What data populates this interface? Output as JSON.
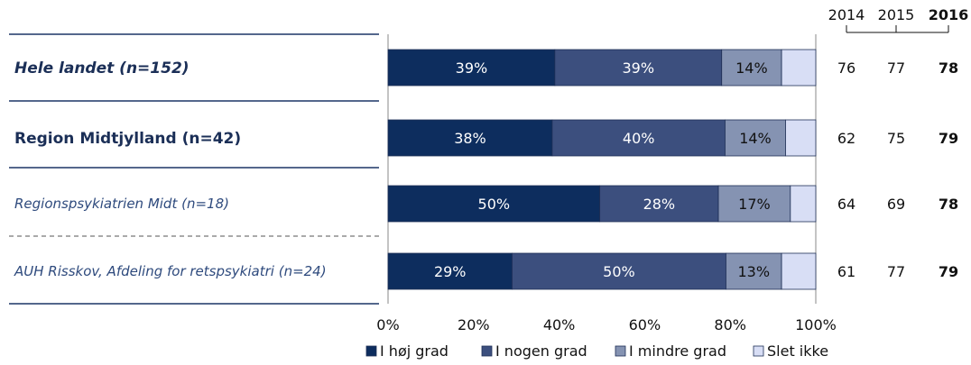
{
  "chart_data": {
    "type": "bar",
    "orientation": "horizontal",
    "stacked": true,
    "percent": true,
    "rows": [
      {
        "label": "Hele landet (n=152)",
        "level": 1,
        "values": [
          39,
          39,
          14,
          8
        ],
        "labels": [
          "39%",
          "39%",
          "14%",
          ""
        ],
        "scores": [
          "76",
          "77",
          "78"
        ]
      },
      {
        "label": "Region Midtjylland (n=42)",
        "level": 2,
        "values": [
          38,
          40,
          14,
          7
        ],
        "labels": [
          "38%",
          "40%",
          "14%",
          ""
        ],
        "scores": [
          "62",
          "75",
          "79"
        ]
      },
      {
        "label": "Regionspsykiatrien Midt (n=18)",
        "level": 3,
        "values": [
          50,
          28,
          17,
          6
        ],
        "labels": [
          "50%",
          "28%",
          "17%",
          ""
        ],
        "scores": [
          "64",
          "69",
          "78"
        ]
      },
      {
        "label": "AUH Risskov, Afdeling for retspsykiatri (n=24)",
        "level": 3,
        "values": [
          29,
          50,
          13,
          8
        ],
        "labels": [
          "29%",
          "50%",
          "13%",
          ""
        ],
        "scores": [
          "61",
          "77",
          "79"
        ]
      }
    ],
    "series": [
      {
        "name": "I høj grad",
        "color": "#0d2d5e",
        "text_color": "#ffffff"
      },
      {
        "name": "I nogen grad",
        "color": "#3c4f7e",
        "text_color": "#ffffff"
      },
      {
        "name": "I mindre grad",
        "color": "#8593b2",
        "text_color": "#111111"
      },
      {
        "name": "Slet ikke",
        "color": "#d8def5",
        "text_color": "#111111"
      }
    ],
    "x_ticks": [
      "0%",
      "20%",
      "40%",
      "60%",
      "80%",
      "100%"
    ],
    "xlim": [
      0,
      100
    ],
    "years": [
      "2014",
      "2015",
      "2016"
    ],
    "bold_year_index": 2,
    "legend_position": "bottom"
  }
}
